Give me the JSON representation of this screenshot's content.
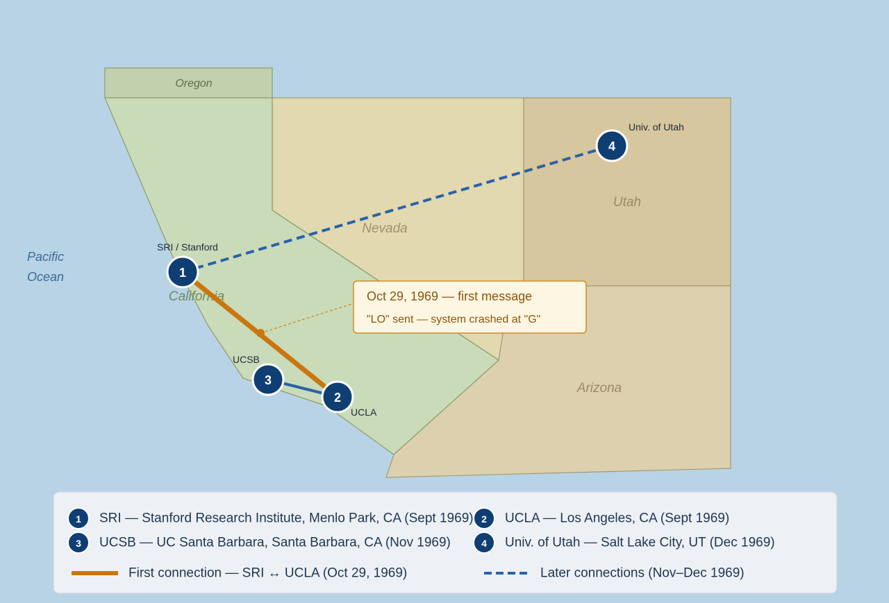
{
  "regions": {
    "oregon": "Oregon",
    "california": "California",
    "nevada": "Nevada",
    "utah": "Utah",
    "arizona": "Arizona"
  },
  "ocean_label": [
    "Pacific",
    "Ocean"
  ],
  "sites": [
    {
      "number": "1",
      "label": "SRI / Stanford"
    },
    {
      "number": "2",
      "label": "UCLA"
    },
    {
      "number": "3",
      "label": "UCSB"
    },
    {
      "number": "4",
      "label": "Univ. of Utah"
    }
  ],
  "callout": {
    "title": "Oct 29, 1969 — first message",
    "text": "\"LO\" sent — system crashed at \"G\""
  },
  "legend": {
    "sites": [
      "SRI — Stanford Research Institute, Menlo Park, CA (Sept 1969)",
      "UCLA — Los Angeles, CA (Sept 1969)",
      "UCSB — UC Santa Barbara, Santa Barbara, CA (Nov 1969)",
      "Univ. of Utah — Salt Lake City, UT (Dec 1969)"
    ],
    "lines": [
      "First connection — SRI ↔ UCLA (Oct 29, 1969)",
      "Later connections (Nov–Dec 1969)"
    ]
  }
}
